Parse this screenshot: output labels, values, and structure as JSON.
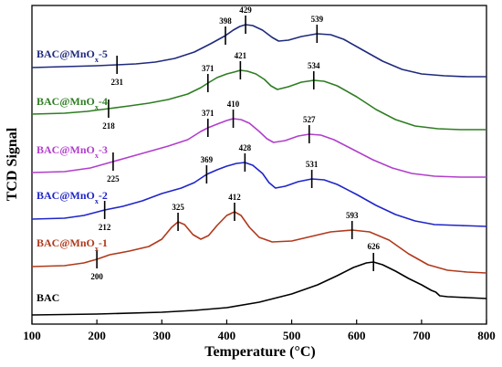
{
  "chart_data": {
    "type": "line",
    "xlabel": "Temperature (°C)",
    "ylabel": "TCD Signal",
    "xlim": [
      100,
      800
    ],
    "xticks": [
      100,
      200,
      300,
      400,
      500,
      600,
      700,
      800
    ],
    "yticks_shown": false,
    "grid": false,
    "legend": "inline labels at left of each curve",
    "series": [
      {
        "name": "BAC",
        "color": "#000000",
        "peaks": [
          "626"
        ],
        "points": [
          [
            100,
            345
          ],
          [
            200,
            344
          ],
          [
            300,
            342
          ],
          [
            350,
            340
          ],
          [
            400,
            337
          ],
          [
            450,
            331
          ],
          [
            500,
            322
          ],
          [
            540,
            312
          ],
          [
            570,
            302
          ],
          [
            595,
            293
          ],
          [
            615,
            288
          ],
          [
            626,
            287
          ],
          [
            640,
            290
          ],
          [
            660,
            297
          ],
          [
            680,
            305
          ],
          [
            700,
            312
          ],
          [
            715,
            318
          ],
          [
            722,
            320
          ],
          [
            728,
            324
          ],
          [
            740,
            325
          ],
          [
            770,
            326
          ],
          [
            800,
            327
          ]
        ]
      },
      {
        "name": "BAC@MnO_x-1",
        "color": "#b0391c",
        "peaks": [
          "200",
          "325",
          "412",
          "593"
        ],
        "points": [
          [
            100,
            292
          ],
          [
            150,
            291
          ],
          [
            180,
            288
          ],
          [
            200,
            284
          ],
          [
            220,
            279
          ],
          [
            250,
            275
          ],
          [
            280,
            270
          ],
          [
            300,
            262
          ],
          [
            315,
            249
          ],
          [
            325,
            243
          ],
          [
            335,
            246
          ],
          [
            348,
            257
          ],
          [
            360,
            262
          ],
          [
            372,
            258
          ],
          [
            385,
            247
          ],
          [
            400,
            236
          ],
          [
            412,
            232
          ],
          [
            422,
            236
          ],
          [
            435,
            249
          ],
          [
            450,
            260
          ],
          [
            470,
            265
          ],
          [
            500,
            264
          ],
          [
            530,
            259
          ],
          [
            560,
            254
          ],
          [
            593,
            252
          ],
          [
            620,
            254
          ],
          [
            650,
            263
          ],
          [
            680,
            278
          ],
          [
            710,
            290
          ],
          [
            740,
            296
          ],
          [
            770,
            298
          ],
          [
            800,
            299
          ]
        ]
      },
      {
        "name": "BAC@MnO_x-2",
        "color": "#1f25c9",
        "peaks": [
          "212",
          "369",
          "428",
          "531"
        ],
        "points": [
          [
            100,
            240
          ],
          [
            150,
            239
          ],
          [
            180,
            236
          ],
          [
            212,
            230
          ],
          [
            240,
            226
          ],
          [
            270,
            220
          ],
          [
            300,
            212
          ],
          [
            330,
            206
          ],
          [
            350,
            200
          ],
          [
            369,
            191
          ],
          [
            385,
            186
          ],
          [
            400,
            182
          ],
          [
            415,
            179
          ],
          [
            428,
            178
          ],
          [
            440,
            181
          ],
          [
            455,
            190
          ],
          [
            465,
            200
          ],
          [
            475,
            206
          ],
          [
            490,
            204
          ],
          [
            510,
            199
          ],
          [
            531,
            196
          ],
          [
            550,
            197
          ],
          [
            570,
            202
          ],
          [
            600,
            213
          ],
          [
            630,
            225
          ],
          [
            660,
            235
          ],
          [
            690,
            242
          ],
          [
            720,
            246
          ],
          [
            760,
            247
          ],
          [
            800,
            248
          ]
        ]
      },
      {
        "name": "BAC@MnO_x-3",
        "color": "#b13ecc",
        "peaks": [
          "225",
          "371",
          "410",
          "527"
        ],
        "points": [
          [
            100,
            189
          ],
          [
            150,
            188
          ],
          [
            190,
            184
          ],
          [
            225,
            177
          ],
          [
            250,
            172
          ],
          [
            280,
            166
          ],
          [
            310,
            160
          ],
          [
            340,
            153
          ],
          [
            360,
            144
          ],
          [
            371,
            140
          ],
          [
            385,
            136
          ],
          [
            400,
            132
          ],
          [
            410,
            130
          ],
          [
            422,
            131
          ],
          [
            435,
            135
          ],
          [
            450,
            144
          ],
          [
            462,
            152
          ],
          [
            472,
            156
          ],
          [
            490,
            154
          ],
          [
            510,
            149
          ],
          [
            527,
            147
          ],
          [
            545,
            148
          ],
          [
            565,
            153
          ],
          [
            595,
            164
          ],
          [
            625,
            175
          ],
          [
            655,
            184
          ],
          [
            685,
            190
          ],
          [
            720,
            193
          ],
          [
            760,
            194
          ],
          [
            800,
            194
          ]
        ]
      },
      {
        "name": "BAC@MnO_x-4",
        "color": "#2e7d22",
        "peaks": [
          "218",
          "371",
          "421",
          "534"
        ],
        "points": [
          [
            100,
            125
          ],
          [
            150,
            124
          ],
          [
            185,
            122
          ],
          [
            218,
            119
          ],
          [
            250,
            116
          ],
          [
            280,
            113
          ],
          [
            310,
            109
          ],
          [
            340,
            103
          ],
          [
            360,
            96
          ],
          [
            371,
            91
          ],
          [
            385,
            85
          ],
          [
            400,
            81
          ],
          [
            411,
            79
          ],
          [
            421,
            77
          ],
          [
            432,
            78
          ],
          [
            445,
            81
          ],
          [
            458,
            87
          ],
          [
            468,
            94
          ],
          [
            478,
            98
          ],
          [
            495,
            95
          ],
          [
            515,
            90
          ],
          [
            534,
            88
          ],
          [
            550,
            89
          ],
          [
            570,
            94
          ],
          [
            600,
            106
          ],
          [
            630,
            120
          ],
          [
            660,
            131
          ],
          [
            690,
            138
          ],
          [
            725,
            141
          ],
          [
            760,
            142
          ],
          [
            800,
            142
          ]
        ]
      },
      {
        "name": "BAC@MnO_x-5",
        "color": "#1f2a7c",
        "peaks": [
          "231",
          "398",
          "429",
          "539"
        ],
        "points": [
          [
            100,
            74
          ],
          [
            150,
            73
          ],
          [
            200,
            72
          ],
          [
            231,
            71
          ],
          [
            260,
            70
          ],
          [
            290,
            68
          ],
          [
            320,
            64
          ],
          [
            350,
            57
          ],
          [
            375,
            48
          ],
          [
            398,
            39
          ],
          [
            410,
            33
          ],
          [
            420,
            29
          ],
          [
            429,
            27
          ],
          [
            440,
            28
          ],
          [
            455,
            33
          ],
          [
            470,
            41
          ],
          [
            480,
            45
          ],
          [
            495,
            44
          ],
          [
            515,
            40
          ],
          [
            539,
            37
          ],
          [
            560,
            38
          ],
          [
            580,
            43
          ],
          [
            610,
            55
          ],
          [
            640,
            67
          ],
          [
            670,
            76
          ],
          [
            700,
            81
          ],
          [
            735,
            83
          ],
          [
            770,
            84
          ],
          [
            800,
            84
          ]
        ]
      }
    ]
  }
}
